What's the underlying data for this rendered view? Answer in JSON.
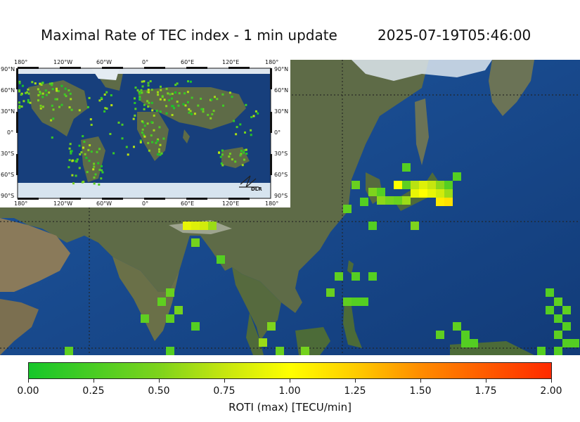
{
  "header": {
    "title": "Maximal Rate of TEC index - 1 min update",
    "timestamp": "2025-07-19T05:46:00"
  },
  "inset": {
    "top_lon_labels": [
      "180°",
      "120°W",
      "60°W",
      "0°",
      "60°E",
      "120°E",
      "180°"
    ],
    "bottom_lon_labels": [
      "180°",
      "120°W",
      "60°W",
      "0°",
      "60°E",
      "120°E",
      "180°"
    ],
    "left_lat_labels": [
      "90°N",
      "60°N",
      "30°N",
      "0°",
      "30°S",
      "60°S",
      "90°S"
    ],
    "right_lat_labels": [
      "90°N",
      "60°N",
      "30°N",
      "0°",
      "30°S",
      "60°S",
      "90°S"
    ],
    "logo_text": "DLR"
  },
  "colorbar": {
    "label": "ROTI (max) [TECU/min]",
    "ticks": [
      "0.00",
      "0.25",
      "0.50",
      "0.75",
      "1.00",
      "1.25",
      "1.50",
      "1.75",
      "2.00"
    ],
    "min": 0,
    "max": 2,
    "colors": [
      "#16c62a",
      "#7ed31c",
      "#ffff00",
      "#ff8c00",
      "#ff2a00"
    ]
  },
  "map_colors": {
    "ocean": "#1d4f93",
    "deep_ocean": "#163f7e",
    "land": "#5b6a44",
    "ice": "#e4ecf2",
    "grid": "#222222"
  }
}
